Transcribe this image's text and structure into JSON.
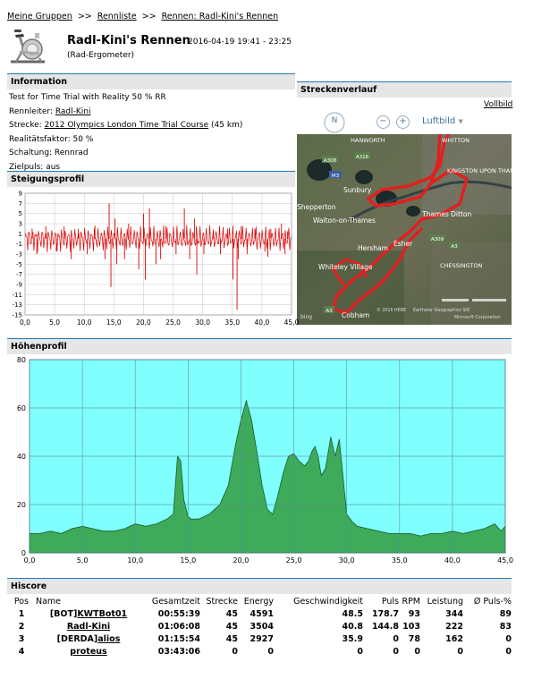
{
  "breadcrumb": {
    "items": [
      "Meine Gruppen",
      "Rennliste",
      "Rennen: Radl-Kini's Rennen"
    ],
    "separator": ">>"
  },
  "header": {
    "title": "Radl-Kini's Rennen",
    "datetime": "2016-04-19 19:41 - 23:25",
    "subtitle": "(Rad-Ergometer)",
    "icon": "exercise-bike-icon"
  },
  "information": {
    "heading": "Information",
    "description": "Test for Time Trial with Reality 50 % RR",
    "rennleiter_label": "Rennleiter:",
    "rennleiter_value": "Radl-Kini",
    "strecke_label": "Strecke:",
    "strecke_value": "2012 Olympics London Time Trial Course",
    "strecke_extra": "(45 km)",
    "realitaet": "Realitätsfaktor: 50 %",
    "schaltung": "Schaltung: Rennrad",
    "zielpuls": "Zielpuls: aus"
  },
  "streckenverlauf": {
    "heading": "Streckenverlauf",
    "vollbild": "Vollbild",
    "map_type": "Luftbild",
    "compass": "N",
    "places": [
      "HANWORTH",
      "WHITTON",
      "KINGSTON UPON THAMES",
      "Sunbury",
      "Shepperton",
      "Walton-on-Thames",
      "Thames Ditton",
      "Hersham",
      "Esher",
      "Whiteley Village",
      "CHESSINGTON",
      "Cobham"
    ],
    "roads": [
      "A308",
      "A316",
      "M3",
      "A309",
      "A3"
    ],
    "copyright": "© 2016 HERE",
    "copyright2": "Earthstar Geographics SIO",
    "copyright3": "Microsoft Corporation",
    "bing": "bing"
  },
  "steigungsprofil": {
    "heading": "Steigungsprofil"
  },
  "hoehenprofil": {
    "heading": "Höhenprofil"
  },
  "chart_data": [
    {
      "type": "line",
      "name": "steigung",
      "xlim": [
        0,
        45
      ],
      "ylim": [
        -15,
        9
      ],
      "x_ticks": [
        "0,0",
        "5,0",
        "10,0",
        "15,0",
        "20,0",
        "25,0",
        "30,0",
        "35,0",
        "40,0",
        "45,0"
      ],
      "y_ticks": [
        "9",
        "7",
        "5",
        "3",
        "1",
        "-1",
        "-3",
        "-5",
        "-7",
        "-9",
        "-11",
        "-13",
        "-15"
      ],
      "color": "#dd0000",
      "spikes": [
        [
          1.2,
          2
        ],
        [
          2.0,
          -3
        ],
        [
          3.5,
          2.5
        ],
        [
          5.3,
          -2.5
        ],
        [
          6.6,
          2.5
        ],
        [
          7.8,
          -4
        ],
        [
          9.0,
          2
        ],
        [
          10.5,
          -3
        ],
        [
          11.8,
          2.6
        ],
        [
          13.5,
          -4
        ],
        [
          14.2,
          7
        ],
        [
          14.5,
          -9.5
        ],
        [
          15.2,
          4
        ],
        [
          15.5,
          -5
        ],
        [
          16.8,
          -4
        ],
        [
          17.5,
          3
        ],
        [
          19.2,
          -6
        ],
        [
          20.0,
          5
        ],
        [
          20.3,
          -8
        ],
        [
          21.0,
          6
        ],
        [
          22.1,
          -5
        ],
        [
          22.9,
          -4
        ],
        [
          23.8,
          2.5
        ],
        [
          25.5,
          -3
        ],
        [
          26.9,
          6
        ],
        [
          27.8,
          -4
        ],
        [
          28.6,
          4
        ],
        [
          29.0,
          -7
        ],
        [
          30.2,
          -3
        ],
        [
          31.8,
          1.5
        ],
        [
          33.0,
          -3
        ],
        [
          34.2,
          2
        ],
        [
          35.1,
          -8
        ],
        [
          35.8,
          -14
        ],
        [
          36.0,
          -4
        ],
        [
          36.5,
          2.5
        ],
        [
          37.5,
          -3
        ],
        [
          38.8,
          2
        ],
        [
          40.5,
          -2.5
        ],
        [
          41.0,
          -3.5
        ],
        [
          41.5,
          2
        ],
        [
          43.3,
          3
        ],
        [
          43.9,
          -3
        ],
        [
          44.3,
          1.5
        ]
      ]
    },
    {
      "type": "area",
      "name": "hoehe",
      "xlim": [
        0,
        45
      ],
      "ylim": [
        0,
        80
      ],
      "x_ticks": [
        "0,0",
        "5,0",
        "10,0",
        "15,0",
        "20,0",
        "25,0",
        "30,0",
        "35,0",
        "40,0",
        "45,0"
      ],
      "y_ticks": [
        "80",
        "60",
        "40",
        "20",
        "0"
      ],
      "background": "#80ffff",
      "fill": "#3dab5a",
      "x": [
        0,
        1,
        2,
        3,
        4,
        5,
        6,
        7,
        8,
        9,
        10,
        11,
        12,
        13,
        13.6,
        14.0,
        14.3,
        14.6,
        15.0,
        15.3,
        16,
        17,
        18,
        18.8,
        19.5,
        20.0,
        20.5,
        21.0,
        21.5,
        22.0,
        22.5,
        23.0,
        23.5,
        24.0,
        24.5,
        25.0,
        25.5,
        26.0,
        26.4,
        26.7,
        27.0,
        27.3,
        27.6,
        28.0,
        28.5,
        28.9,
        29.3,
        29.6,
        30.0,
        30.5,
        31.0,
        32.0,
        33.0,
        34.0,
        35.0,
        36.0,
        37.0,
        38.0,
        39.0,
        40.0,
        41.0,
        42.0,
        43.0,
        44.0,
        44.6,
        45.0
      ],
      "values": [
        8,
        8,
        9,
        8,
        10,
        11,
        10,
        9,
        9,
        10,
        12,
        11,
        12,
        14,
        16,
        40,
        38,
        22,
        15,
        14,
        14,
        16,
        20,
        28,
        45,
        55,
        63,
        55,
        42,
        28,
        18,
        16,
        24,
        33,
        40,
        41,
        38,
        36,
        38,
        42,
        44,
        40,
        32,
        35,
        48,
        40,
        47,
        34,
        16,
        13,
        11,
        10,
        9,
        8,
        8,
        8,
        7,
        8,
        8,
        9,
        8,
        9,
        10,
        12,
        9,
        11
      ]
    }
  ],
  "hiscore": {
    "heading": "Hiscore",
    "columns": [
      "Pos",
      "Name",
      "Gesamtzeit",
      "Strecke",
      "Energy",
      "Geschwindigkeit",
      "Puls",
      "RPM",
      "Leistung",
      "Ø Puls-%"
    ],
    "rows": [
      {
        "pos": "1",
        "prefix": "[BOT]",
        "name": "KWTBot01",
        "zeit": "00:55:39",
        "strecke": "45",
        "energy": "4591",
        "speed": "48.5",
        "puls": "178.7",
        "rpm": "93",
        "leistung": "344",
        "pulsp": "89"
      },
      {
        "pos": "2",
        "prefix": "",
        "name": "Radl-Kini",
        "zeit": "01:06:08",
        "strecke": "45",
        "energy": "3504",
        "speed": "40.8",
        "puls": "144.8",
        "rpm": "103",
        "leistung": "222",
        "pulsp": "83"
      },
      {
        "pos": "3",
        "prefix": "[DERDA]",
        "name": "alios",
        "zeit": "01:15:54",
        "strecke": "45",
        "energy": "2927",
        "speed": "35.9",
        "puls": "0",
        "rpm": "78",
        "leistung": "162",
        "pulsp": "0"
      },
      {
        "pos": "4",
        "prefix": "",
        "name": "proteus",
        "zeit": "03:43:06",
        "strecke": "0",
        "energy": "0",
        "speed": "0",
        "puls": "0",
        "rpm": "0",
        "leistung": "0",
        "pulsp": "0"
      }
    ]
  }
}
